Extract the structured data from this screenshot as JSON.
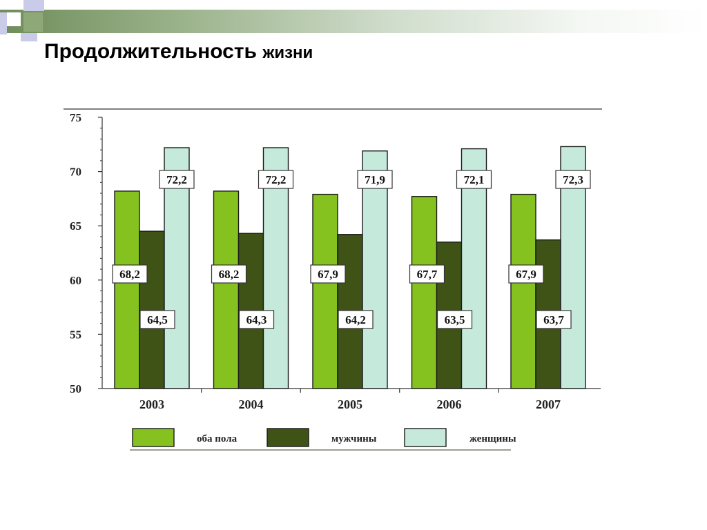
{
  "slide": {
    "title_main": "Продолжительность",
    "title_rest": "жизни"
  },
  "colors": {
    "header_gradient_start": "#6f8c5a",
    "deco_lavender": "#c9cbe8",
    "deco_green": "#8fa878",
    "deco_white": "#ffffff"
  },
  "chart_data": {
    "type": "bar",
    "title": "",
    "xlabel": "",
    "ylabel": "",
    "categories": [
      "2003",
      "2004",
      "2005",
      "2006",
      "2007"
    ],
    "series": [
      {
        "name": "оба пола",
        "color": "#85c21f",
        "values": [
          68.2,
          68.2,
          67.9,
          67.7,
          67.9
        ],
        "labels": [
          "68,2",
          "68,2",
          "67,9",
          "67,7",
          "67,9"
        ]
      },
      {
        "name": "мужчины",
        "color": "#3f5317",
        "values": [
          64.5,
          64.3,
          64.2,
          63.5,
          63.7
        ],
        "labels": [
          "64,5",
          "64,3",
          "64,2",
          "63,5",
          "63,7"
        ]
      },
      {
        "name": "женщины",
        "color": "#c5eadc",
        "values": [
          72.2,
          72.2,
          71.9,
          72.1,
          72.3
        ],
        "labels": [
          "72,2",
          "72,2",
          "71,9",
          "72,1",
          "72,3"
        ]
      }
    ],
    "ylim": [
      50,
      75
    ],
    "yticks": [
      50,
      55,
      60,
      65,
      70,
      75
    ],
    "ytick_labels": [
      "50",
      "55",
      "60",
      "65",
      "70",
      "75"
    ],
    "grid": false,
    "legend_position": "bottom"
  }
}
